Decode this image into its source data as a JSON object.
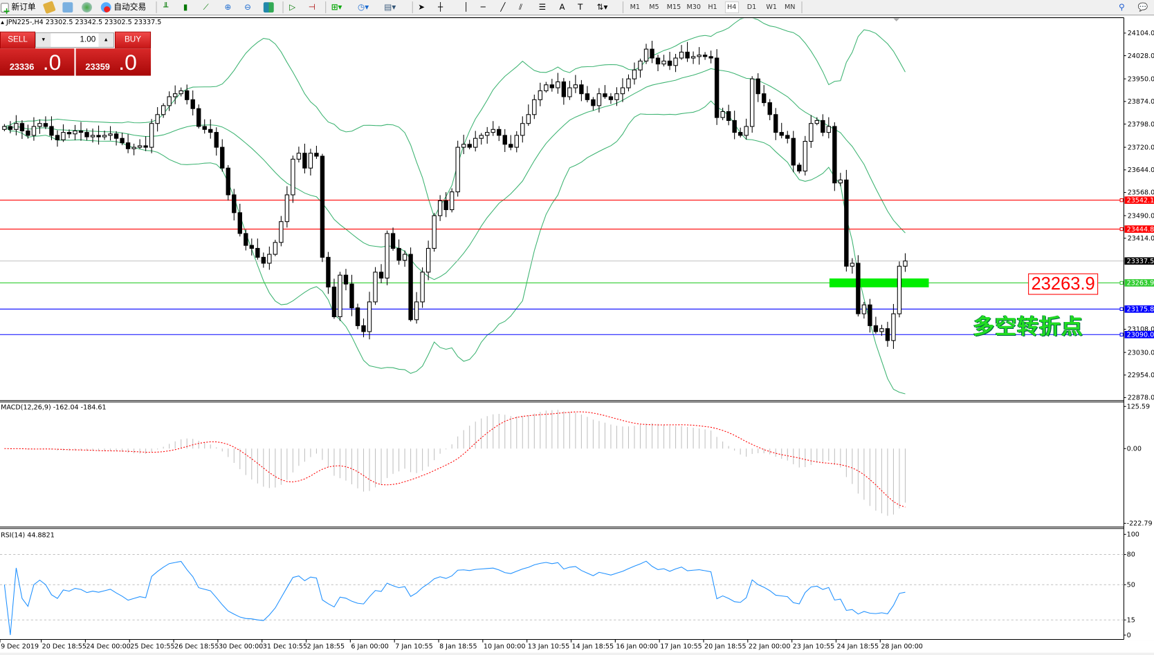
{
  "toolbar": {
    "new_order": "新订单",
    "auto_trading": "自动交易",
    "timeframes": [
      "M1",
      "M5",
      "M15",
      "M30",
      "H1",
      "H4",
      "D1",
      "W1",
      "MN"
    ],
    "active_timeframe": "H4"
  },
  "chart_header": {
    "symbol": "JPN225-,H4",
    "ohlc": "23302.5 23342.5 23302.5 23337.5"
  },
  "trade_panel": {
    "sell_label": "SELL",
    "buy_label": "BUY",
    "volume": "1.00",
    "sell_price_main": "23336",
    "sell_price_big": ".0",
    "buy_price_main": "23359",
    "buy_price_big": ".0"
  },
  "annotations": {
    "price_box": "23263.9",
    "text": "多空转折点",
    "green_bar_color": "#00ee00"
  },
  "colors": {
    "bollinger": "#3cb371",
    "macd_signal": "#ff0000",
    "macd_hist": "#c0c0c0",
    "rsi": "#1e90ff"
  },
  "chart_data": [
    {
      "type": "candlestick",
      "pane": "main",
      "symbol": "JPN225-",
      "timeframe": "H4",
      "ylim": [
        22878,
        24104
      ],
      "y_ticks": [
        "24104.0",
        "24028.0",
        "23950.0",
        "23874.0",
        "23798.0",
        "23720.0",
        "23644.0",
        "23568.0",
        "23490.0",
        "23414.0",
        "23108.0",
        "23030.0",
        "22954.0",
        "22878.0"
      ],
      "y_tick_values": [
        24104,
        24028,
        23950,
        23874,
        23798,
        23720,
        23644,
        23568,
        23490,
        23414,
        23108,
        23030,
        22954,
        22878
      ],
      "x_ticks": [
        "9 Dec 2019",
        "20 Dec 18:55",
        "24 Dec 00:00",
        "25 Dec 10:55",
        "26 Dec 18:55",
        "30 Dec 00:00",
        "31 Dec 10:55",
        "2 Jan 18:55",
        "6 Jan 00:00",
        "7 Jan 10:55",
        "8 Jan 18:55",
        "10 Jan 00:00",
        "13 Jan 10:55",
        "14 Jan 18:55",
        "16 Jan 00:00",
        "17 Jan 10:55",
        "20 Jan 18:55",
        "22 Jan 00:00",
        "23 Jan 10:55",
        "24 Jan 18:55",
        "28 Jan 00:00"
      ],
      "indicator": "Bollinger Bands (20, 2)",
      "closes": [
        23790,
        23780,
        23800,
        23775,
        23760,
        23790,
        23800,
        23790,
        23760,
        23745,
        23770,
        23765,
        23775,
        23770,
        23755,
        23760,
        23755,
        23760,
        23765,
        23750,
        23735,
        23715,
        23720,
        23725,
        23720,
        23800,
        23830,
        23860,
        23890,
        23900,
        23910,
        23880,
        23850,
        23790,
        23780,
        23770,
        23720,
        23650,
        23560,
        23500,
        23430,
        23390,
        23380,
        23350,
        23330,
        23360,
        23400,
        23470,
        23560,
        23680,
        23700,
        23650,
        23700,
        23690,
        23350,
        23250,
        23150,
        23290,
        23260,
        23180,
        23120,
        23100,
        23200,
        23300,
        23280,
        23430,
        23380,
        23340,
        23360,
        23140,
        23200,
        23300,
        23380,
        23490,
        23540,
        23510,
        23570,
        23720,
        23730,
        23720,
        23750,
        23760,
        23770,
        23780,
        23760,
        23730,
        23720,
        23760,
        23800,
        23830,
        23880,
        23910,
        23930,
        23920,
        23940,
        23890,
        23920,
        23930,
        23900,
        23880,
        23860,
        23900,
        23890,
        23880,
        23900,
        23920,
        23950,
        23980,
        24010,
        24050,
        24020,
        24000,
        24010,
        23995,
        24020,
        24040,
        24020,
        24025,
        24030,
        24025,
        24020,
        23820,
        23840,
        23810,
        23770,
        23760,
        23790,
        23950,
        23900,
        23870,
        23830,
        23770,
        23760,
        23750,
        23660,
        23640,
        23740,
        23800,
        23810,
        23770,
        23790,
        23600,
        23610,
        23320,
        23330,
        23160,
        23190,
        23120,
        23100,
        23110,
        23070,
        23160,
        23320,
        23337.5
      ],
      "horizontal_levels": [
        {
          "price": 23542.1,
          "label": "23542.1",
          "color": "#ff0000"
        },
        {
          "price": 23444.8,
          "label": "23444.8",
          "color": "#ff0000"
        },
        {
          "price": 23337.5,
          "label": "23337.5",
          "color": "#000000",
          "line_color": "#c0c0c0"
        },
        {
          "price": 23263.9,
          "label": "23263.9",
          "color": "#32cd32"
        },
        {
          "price": 23175.8,
          "label": "23175.8",
          "color": "#0000ff"
        },
        {
          "price": 23090.0,
          "label": "23090.0",
          "color": "#0000ff"
        }
      ]
    },
    {
      "type": "bar+line",
      "pane": "macd",
      "title": "MACD(12,26,9) -162.04 -184.61",
      "ylim": [
        -222.79,
        125.59
      ],
      "y_ticks": [
        "125.59",
        "0.00",
        "-222.79"
      ],
      "y_tick_values": [
        125.59,
        0,
        -222.79
      ]
    },
    {
      "type": "line",
      "pane": "rsi",
      "title": "RSI(14) 44.8821",
      "ylim": [
        0,
        100
      ],
      "levels": [
        80,
        50,
        15
      ],
      "y_ticks": [
        "100",
        "80",
        "50",
        "15",
        "0"
      ],
      "y_tick_values": [
        100,
        80,
        50,
        15,
        0
      ]
    }
  ]
}
